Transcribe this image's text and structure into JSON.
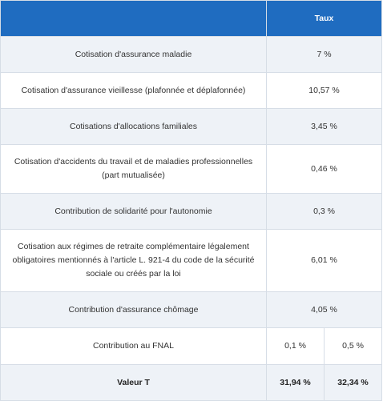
{
  "header": {
    "col1": "",
    "col2": "Taux"
  },
  "rows": [
    {
      "label": "Cotisation d'assurance maladie",
      "value": "7 %"
    },
    {
      "label": "Cotisation d'assurance vieillesse (plafonnée et déplafonnée)",
      "value": "10,57 %"
    },
    {
      "label": "Cotisations d'allocations familiales",
      "value": "3,45 %"
    },
    {
      "label": "Cotisation d'accidents du travail et de maladies professionnelles (part mutualisée)",
      "value": "0,46 %"
    },
    {
      "label": "Contribution de solidarité pour l'autonomie",
      "value": "0,3 %"
    },
    {
      "label": "Cotisation aux régimes de retraite complémentaire légalement obligatoires mentionnés à l'article L. 921-4 du code de la sécurité sociale ou créés par la loi",
      "value": "6,01 %"
    },
    {
      "label": "Contribution d'assurance chômage",
      "value": "4,05 %"
    }
  ],
  "fnal": {
    "label": "Contribution au FNAL",
    "value_a": "0,1 %",
    "value_b": "0,5 %"
  },
  "total": {
    "label": "Valeur T",
    "value_a": "31,94 %",
    "value_b": "32,34 %"
  }
}
